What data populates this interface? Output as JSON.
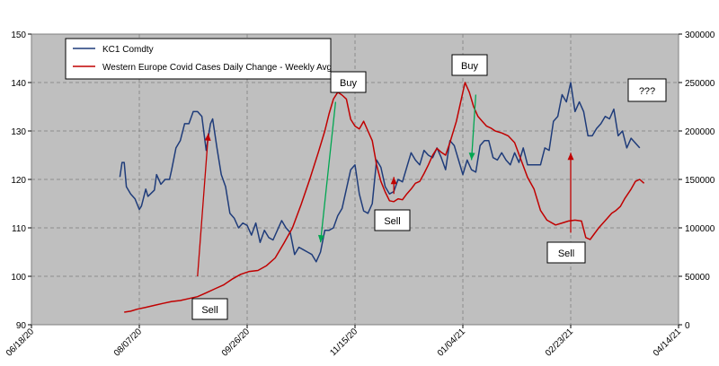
{
  "legend": [
    "KC1 Comdty",
    "Western Europe Covid Cases Daily Change - Weekly Avg"
  ],
  "annotations": [
    "Sell",
    "Buy",
    "Sell",
    "Buy",
    "Sell",
    "???"
  ],
  "colors": {
    "kc1": "#1f3c7a",
    "covid": "#c00000",
    "arrow_up": "#c00000",
    "arrow_down": "#00a651",
    "plot_bg": "#bfbfbf"
  },
  "chart_data": {
    "type": "line",
    "grid": true,
    "legend_position": "top-left",
    "x_ticks": [
      "06/18/20",
      "08/07/20",
      "09/26/20",
      "11/15/20",
      "01/04/21",
      "02/23/21",
      "04/14/21"
    ],
    "xlim": [
      "2020-06-18",
      "2021-04-14"
    ],
    "y_left": {
      "ticks": [
        "90",
        "100",
        "110",
        "120",
        "130",
        "140",
        "150"
      ],
      "lim": [
        90,
        150
      ]
    },
    "y_right": {
      "ticks": [
        "0",
        "50000",
        "100000",
        "150000",
        "200000",
        "250000",
        "300000"
      ],
      "lim": [
        0,
        300000
      ]
    },
    "series": [
      {
        "name": "KC1 Comdty",
        "axis": "left",
        "points": [
          [
            "2020-07-29",
            120.5
          ],
          [
            "2020-07-30",
            123.5
          ],
          [
            "2020-07-31",
            123.5
          ],
          [
            "2020-08-01",
            118.5
          ],
          [
            "2020-08-03",
            117.0
          ],
          [
            "2020-08-05",
            116.0
          ],
          [
            "2020-08-07",
            113.8
          ],
          [
            "2020-08-08",
            114.5
          ],
          [
            "2020-08-10",
            118.0
          ],
          [
            "2020-08-11",
            116.5
          ],
          [
            "2020-08-14",
            117.8
          ],
          [
            "2020-08-15",
            121.0
          ],
          [
            "2020-08-17",
            119.0
          ],
          [
            "2020-08-19",
            120.0
          ],
          [
            "2020-08-21",
            120.0
          ],
          [
            "2020-08-22",
            122.0
          ],
          [
            "2020-08-24",
            126.5
          ],
          [
            "2020-08-26",
            128.0
          ],
          [
            "2020-08-28",
            131.5
          ],
          [
            "2020-08-30",
            131.5
          ],
          [
            "2020-09-01",
            134.0
          ],
          [
            "2020-09-03",
            134.0
          ],
          [
            "2020-09-05",
            133.0
          ],
          [
            "2020-09-07",
            126.0
          ],
          [
            "2020-09-09",
            131.5
          ],
          [
            "2020-09-10",
            132.5
          ],
          [
            "2020-09-12",
            126.5
          ],
          [
            "2020-09-14",
            121.0
          ],
          [
            "2020-09-16",
            118.5
          ],
          [
            "2020-09-18",
            113.0
          ],
          [
            "2020-09-20",
            112.0
          ],
          [
            "2020-09-22",
            110.0
          ],
          [
            "2020-09-24",
            111.0
          ],
          [
            "2020-09-26",
            110.5
          ],
          [
            "2020-09-28",
            108.5
          ],
          [
            "2020-09-30",
            111.0
          ],
          [
            "2020-10-02",
            107.0
          ],
          [
            "2020-10-04",
            109.5
          ],
          [
            "2020-10-06",
            108.0
          ],
          [
            "2020-10-08",
            107.5
          ],
          [
            "2020-10-10",
            109.5
          ],
          [
            "2020-10-12",
            111.5
          ],
          [
            "2020-10-14",
            110.0
          ],
          [
            "2020-10-16",
            109.0
          ],
          [
            "2020-10-18",
            104.5
          ],
          [
            "2020-10-20",
            106.0
          ],
          [
            "2020-10-22",
            105.5
          ],
          [
            "2020-10-24",
            105.0
          ],
          [
            "2020-10-26",
            104.5
          ],
          [
            "2020-10-28",
            103.0
          ],
          [
            "2020-10-30",
            105.0
          ],
          [
            "2020-11-01",
            109.5
          ],
          [
            "2020-11-03",
            109.5
          ],
          [
            "2020-11-05",
            110.0
          ],
          [
            "2020-11-07",
            112.5
          ],
          [
            "2020-11-09",
            114.0
          ],
          [
            "2020-11-11",
            118.0
          ],
          [
            "2020-11-13",
            122.0
          ],
          [
            "2020-11-15",
            123.0
          ],
          [
            "2020-11-17",
            117.0
          ],
          [
            "2020-11-19",
            113.5
          ],
          [
            "2020-11-21",
            113.0
          ],
          [
            "2020-11-23",
            115.0
          ],
          [
            "2020-11-25",
            124.0
          ],
          [
            "2020-11-27",
            122.5
          ],
          [
            "2020-11-29",
            118.5
          ],
          [
            "2020-12-01",
            117.0
          ],
          [
            "2020-12-03",
            117.5
          ],
          [
            "2020-12-05",
            120.0
          ],
          [
            "2020-12-07",
            119.5
          ],
          [
            "2020-12-09",
            122.5
          ],
          [
            "2020-12-11",
            125.5
          ],
          [
            "2020-12-13",
            124.0
          ],
          [
            "2020-12-15",
            123.0
          ],
          [
            "2020-12-17",
            126.0
          ],
          [
            "2020-12-19",
            125.0
          ],
          [
            "2020-12-21",
            124.5
          ],
          [
            "2020-12-23",
            126.5
          ],
          [
            "2020-12-25",
            124.5
          ],
          [
            "2020-12-27",
            122.0
          ],
          [
            "2020-12-29",
            128.0
          ],
          [
            "2020-12-31",
            127.0
          ],
          [
            "2021-01-02",
            124.0
          ],
          [
            "2021-01-04",
            121.0
          ],
          [
            "2021-01-06",
            124.0
          ],
          [
            "2021-01-08",
            122.0
          ],
          [
            "2021-01-10",
            121.5
          ],
          [
            "2021-01-12",
            127.0
          ],
          [
            "2021-01-14",
            128.0
          ],
          [
            "2021-01-16",
            128.0
          ],
          [
            "2021-01-18",
            124.5
          ],
          [
            "2021-01-20",
            124.0
          ],
          [
            "2021-01-22",
            125.5
          ],
          [
            "2021-01-24",
            124.0
          ],
          [
            "2021-01-26",
            123.0
          ],
          [
            "2021-01-28",
            125.5
          ],
          [
            "2021-01-30",
            123.5
          ],
          [
            "2021-02-01",
            126.5
          ],
          [
            "2021-02-03",
            123.0
          ],
          [
            "2021-02-05",
            123.0
          ],
          [
            "2021-02-07",
            123.0
          ],
          [
            "2021-02-09",
            123.0
          ],
          [
            "2021-02-11",
            126.5
          ],
          [
            "2021-02-13",
            126.0
          ],
          [
            "2021-02-15",
            132.0
          ],
          [
            "2021-02-17",
            133.0
          ],
          [
            "2021-02-19",
            137.5
          ],
          [
            "2021-02-21",
            136.0
          ],
          [
            "2021-02-23",
            140.0
          ],
          [
            "2021-02-25",
            134.0
          ],
          [
            "2021-02-27",
            136.0
          ],
          [
            "2021-03-01",
            134.0
          ],
          [
            "2021-03-03",
            129.0
          ],
          [
            "2021-03-05",
            129.0
          ],
          [
            "2021-03-07",
            130.5
          ],
          [
            "2021-03-09",
            131.5
          ],
          [
            "2021-03-11",
            133.0
          ],
          [
            "2021-03-13",
            132.5
          ],
          [
            "2021-03-15",
            134.5
          ],
          [
            "2021-03-17",
            129.0
          ],
          [
            "2021-03-19",
            130.0
          ],
          [
            "2021-03-21",
            126.5
          ],
          [
            "2021-03-23",
            128.5
          ],
          [
            "2021-03-25",
            127.5
          ],
          [
            "2021-03-27",
            126.5
          ]
        ]
      },
      {
        "name": "Western Europe Covid Cases Daily Change - Weekly Avg",
        "axis": "right",
        "points": [
          [
            "2020-07-31",
            13000
          ],
          [
            "2020-08-03",
            14000
          ],
          [
            "2020-08-06",
            16000
          ],
          [
            "2020-08-10",
            18000
          ],
          [
            "2020-08-14",
            20000
          ],
          [
            "2020-08-18",
            22000
          ],
          [
            "2020-08-22",
            24000
          ],
          [
            "2020-08-26",
            25000
          ],
          [
            "2020-08-30",
            27000
          ],
          [
            "2020-09-03",
            29000
          ],
          [
            "2020-09-07",
            33000
          ],
          [
            "2020-09-11",
            37000
          ],
          [
            "2020-09-15",
            41000
          ],
          [
            "2020-09-19",
            47000
          ],
          [
            "2020-09-23",
            52000
          ],
          [
            "2020-09-27",
            55000
          ],
          [
            "2020-10-01",
            56000
          ],
          [
            "2020-10-05",
            61000
          ],
          [
            "2020-10-09",
            69000
          ],
          [
            "2020-10-13",
            84000
          ],
          [
            "2020-10-17",
            100000
          ],
          [
            "2020-10-21",
            124000
          ],
          [
            "2020-10-25",
            150000
          ],
          [
            "2020-10-29",
            178000
          ],
          [
            "2020-11-01",
            200000
          ],
          [
            "2020-11-03",
            218000
          ],
          [
            "2020-11-05",
            233000
          ],
          [
            "2020-11-07",
            240000
          ],
          [
            "2020-11-09",
            237000
          ],
          [
            "2020-11-11",
            233000
          ],
          [
            "2020-11-13",
            212000
          ],
          [
            "2020-11-15",
            205000
          ],
          [
            "2020-11-17",
            202000
          ],
          [
            "2020-11-19",
            210000
          ],
          [
            "2020-11-21",
            200000
          ],
          [
            "2020-11-23",
            190000
          ],
          [
            "2020-11-25",
            165000
          ],
          [
            "2020-11-27",
            148000
          ],
          [
            "2020-11-29",
            137000
          ],
          [
            "2020-12-01",
            128000
          ],
          [
            "2020-12-03",
            127000
          ],
          [
            "2020-12-05",
            130000
          ],
          [
            "2020-12-07",
            129000
          ],
          [
            "2020-12-09",
            135000
          ],
          [
            "2020-12-11",
            140000
          ],
          [
            "2020-12-13",
            146000
          ],
          [
            "2020-12-15",
            148000
          ],
          [
            "2020-12-17",
            156000
          ],
          [
            "2020-12-19",
            165000
          ],
          [
            "2020-12-21",
            175000
          ],
          [
            "2020-12-23",
            182000
          ],
          [
            "2020-12-25",
            178000
          ],
          [
            "2020-12-27",
            175000
          ],
          [
            "2020-12-29",
            188000
          ],
          [
            "2021-01-01",
            210000
          ],
          [
            "2021-01-03",
            230000
          ],
          [
            "2021-01-05",
            250000
          ],
          [
            "2021-01-07",
            240000
          ],
          [
            "2021-01-09",
            225000
          ],
          [
            "2021-01-11",
            215000
          ],
          [
            "2021-01-13",
            210000
          ],
          [
            "2021-01-15",
            205000
          ],
          [
            "2021-01-17",
            203000
          ],
          [
            "2021-01-19",
            200000
          ],
          [
            "2021-01-22",
            198000
          ],
          [
            "2021-01-25",
            195000
          ],
          [
            "2021-01-28",
            188000
          ],
          [
            "2021-01-31",
            170000
          ],
          [
            "2021-02-03",
            152000
          ],
          [
            "2021-02-06",
            140000
          ],
          [
            "2021-02-09",
            118000
          ],
          [
            "2021-02-12",
            108000
          ],
          [
            "2021-02-16",
            103000
          ],
          [
            "2021-02-19",
            105000
          ],
          [
            "2021-02-22",
            107000
          ],
          [
            "2021-02-25",
            108000
          ],
          [
            "2021-02-28",
            107000
          ],
          [
            "2021-03-02",
            90000
          ],
          [
            "2021-03-04",
            88000
          ],
          [
            "2021-03-06",
            94000
          ],
          [
            "2021-03-08",
            100000
          ],
          [
            "2021-03-10",
            105000
          ],
          [
            "2021-03-12",
            110000
          ],
          [
            "2021-03-14",
            115000
          ],
          [
            "2021-03-16",
            118000
          ],
          [
            "2021-03-18",
            122000
          ],
          [
            "2021-03-20",
            130000
          ],
          [
            "2021-03-23",
            140000
          ],
          [
            "2021-03-25",
            148000
          ],
          [
            "2021-03-27",
            150000
          ],
          [
            "2021-03-29",
            146000
          ]
        ]
      }
    ],
    "arrows": [
      {
        "color": "red",
        "from": [
          "2020-09-03",
          100
        ],
        "to": [
          "2020-09-08",
          129.5
        ]
      },
      {
        "color": "green",
        "from": [
          "2020-11-06",
          136
        ],
        "to": [
          "2020-10-30",
          107
        ]
      },
      {
        "color": "red",
        "from": [
          "2020-12-03",
          117
        ],
        "to": [
          "2020-12-03",
          120.5
        ]
      },
      {
        "color": "green",
        "from": [
          "2021-01-10",
          137.5
        ],
        "to": [
          "2021-01-08",
          124
        ]
      },
      {
        "color": "red",
        "from": [
          "2021-02-23",
          109
        ],
        "to": [
          "2021-02-23",
          125.5
        ]
      }
    ]
  }
}
